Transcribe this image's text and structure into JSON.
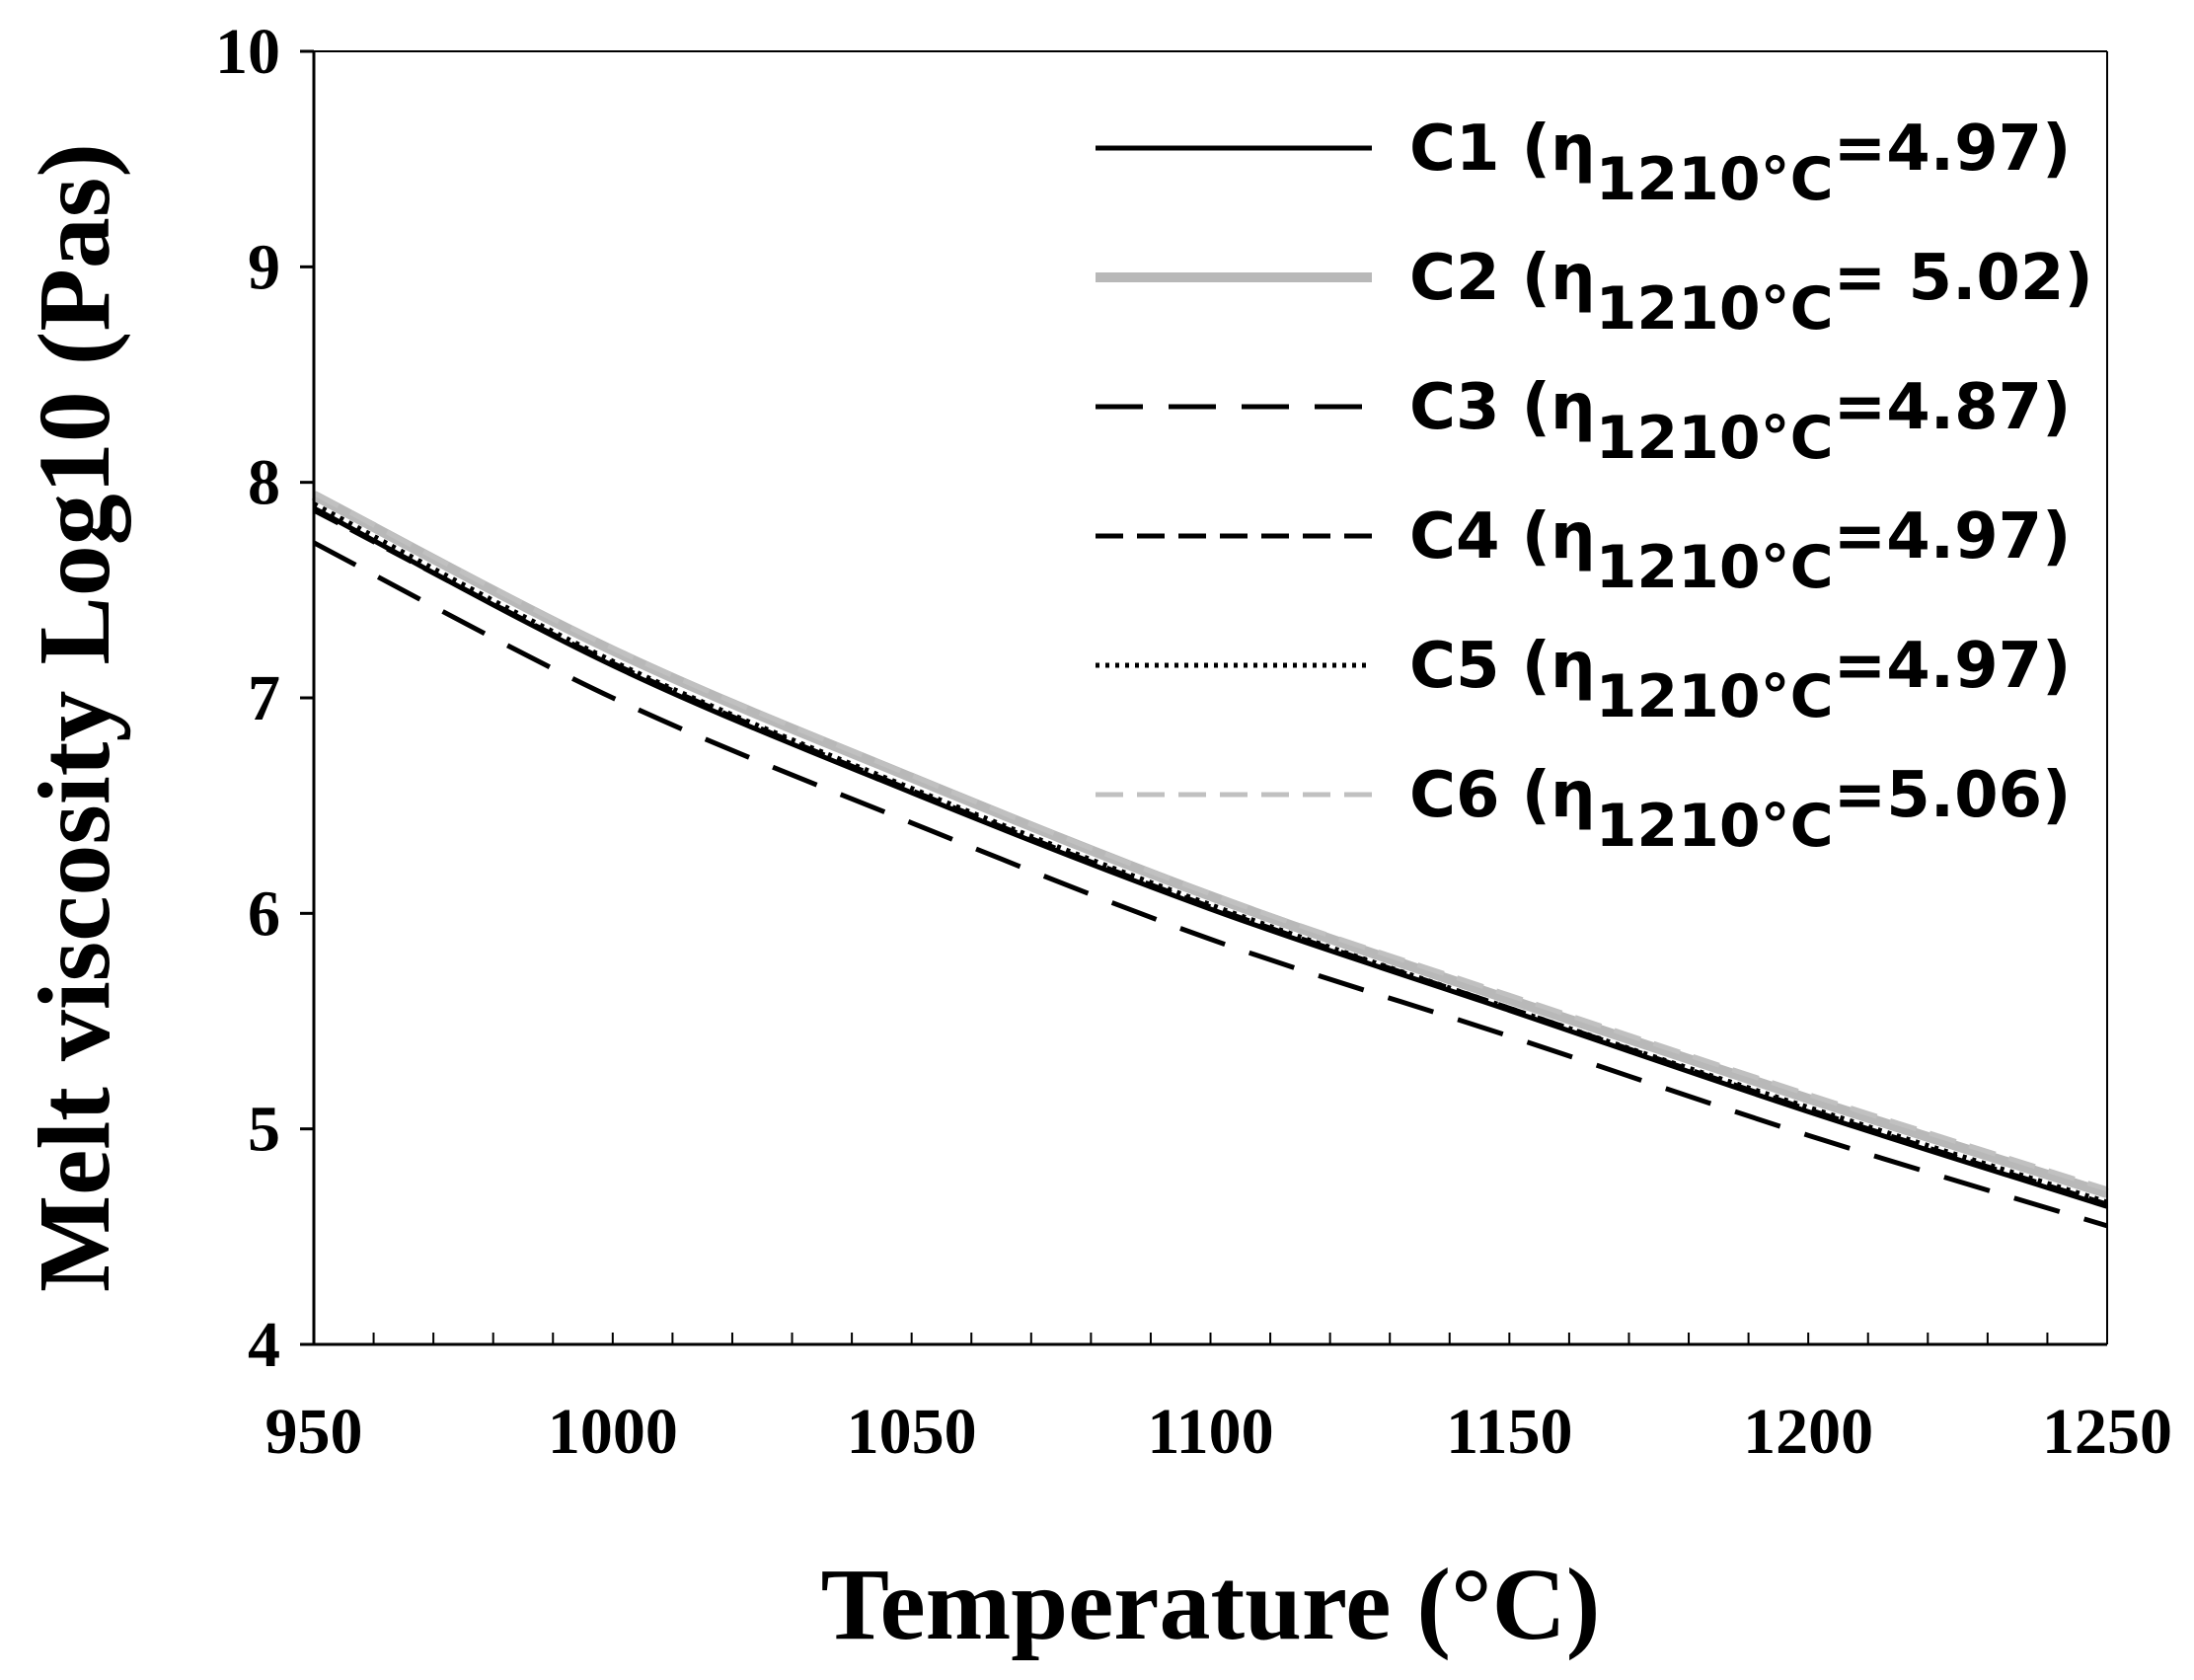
{
  "chart_data": {
    "type": "line",
    "xlabel": "Temperature (°C)",
    "ylabel": "Melt viscosity  Log10 (Pas)",
    "xlim": [
      950,
      1250
    ],
    "ylim": [
      4,
      10
    ],
    "xticks": [
      "950",
      "1000",
      "1050",
      "1100",
      "1150",
      "1200",
      "1250"
    ],
    "yticks": [
      "4",
      "5",
      "6",
      "7",
      "8",
      "9",
      "10"
    ],
    "x_minor_tick_step": 10,
    "grid": false,
    "legend_position": "top-right",
    "x": [
      950,
      1000,
      1050,
      1100,
      1150,
      1200,
      1250
    ],
    "series": [
      {
        "name": "C1",
        "label_prefix": "C1 (η",
        "label_sub": "1210°C",
        "label_suffix": "=4.97)",
        "color": "#000000",
        "style": "solid",
        "values": [
          7.88,
          7.15,
          6.56,
          6.02,
          5.55,
          5.08,
          4.64
        ]
      },
      {
        "name": "C2",
        "label_prefix": "C2 (η",
        "label_sub": "1210°C",
        "label_suffix": "= 5.02)",
        "color": "#b8b8b8",
        "style": "solid-thick",
        "values": [
          7.94,
          7.22,
          6.63,
          6.08,
          5.6,
          5.14,
          4.7
        ]
      },
      {
        "name": "C3",
        "label_prefix": "C3 (η",
        "label_sub": "1210°C",
        "label_suffix": "=4.87)",
        "color": "#000000",
        "style": "long-dash",
        "values": [
          7.72,
          7.0,
          6.42,
          5.88,
          5.43,
          4.97,
          4.55
        ]
      },
      {
        "name": "C4",
        "label_prefix": "C4 (η",
        "label_sub": "1210°C",
        "label_suffix": "=4.97)",
        "color": "#000000",
        "style": "dash",
        "values": [
          7.87,
          7.16,
          6.57,
          6.03,
          5.56,
          5.09,
          4.65
        ]
      },
      {
        "name": "C5",
        "label_prefix": "C5 (η",
        "label_sub": "1210°C",
        "label_suffix": "=4.97)",
        "color": "#000000",
        "style": "dot",
        "values": [
          7.9,
          7.17,
          6.58,
          6.04,
          5.56,
          5.1,
          4.66
        ]
      },
      {
        "name": "C6",
        "label_prefix": "C6 (η",
        "label_sub": "1210°C",
        "label_suffix": "=5.06)",
        "color": "#c0c0c0",
        "style": "dash",
        "values": [
          7.95,
          7.23,
          6.64,
          6.09,
          5.62,
          5.16,
          4.72
        ]
      }
    ]
  }
}
